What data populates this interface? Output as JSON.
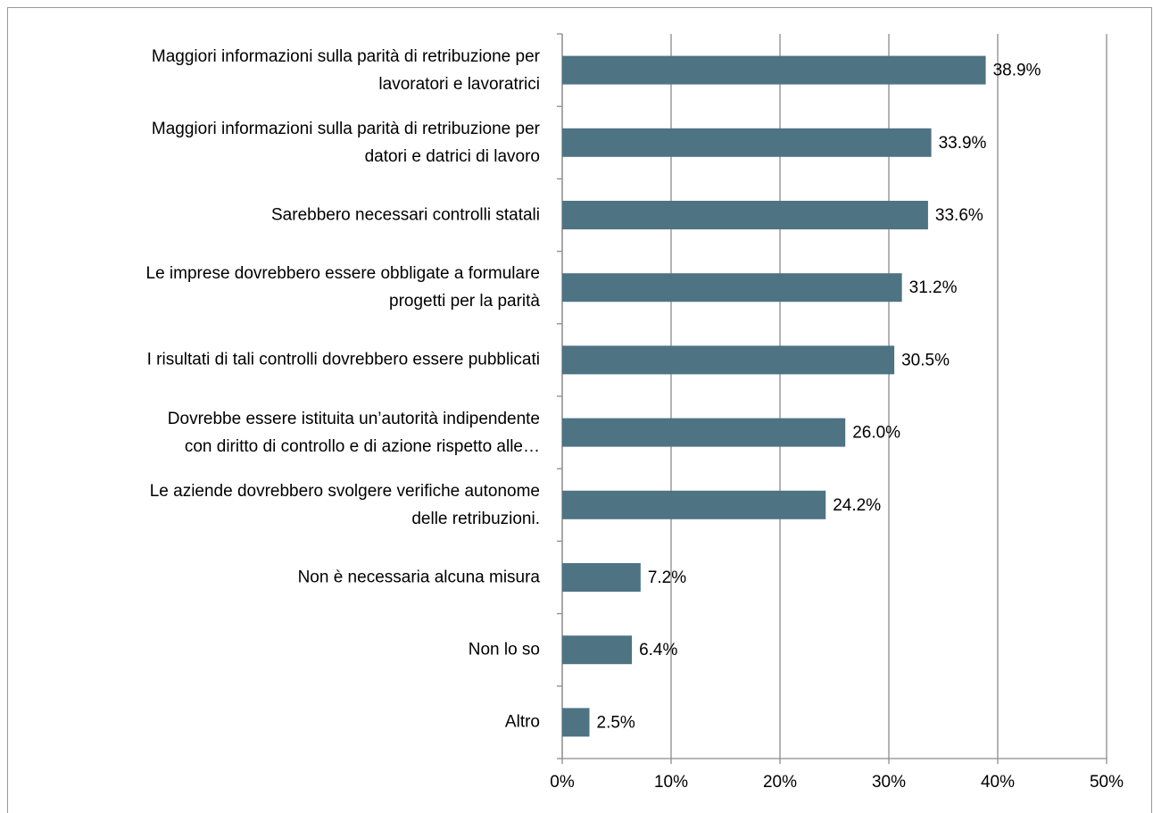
{
  "chart_data": {
    "type": "barh",
    "categories": [
      "Maggiori informazioni sulla parità di retribuzione per\nlavoratori e lavoratrici",
      "Maggiori informazioni sulla parità di retribuzione per\ndatori e datrici di lavoro",
      "Sarebbero necessari controlli statali",
      "Le imprese dovrebbero essere obbligate a formulare\nprogetti per la parità",
      "I risultati di tali controlli dovrebbero essere pubblicati",
      "Dovrebbe essere istituita un’autorità indipendente\ncon diritto di controllo e di azione rispetto alle…",
      "Le aziende dovrebbero svolgere verifiche autonome\ndelle retribuzioni.",
      "Non è necessaria alcuna misura",
      "Non lo so",
      "Altro"
    ],
    "values": [
      38.9,
      33.9,
      33.6,
      31.2,
      30.5,
      26.0,
      24.2,
      7.2,
      6.4,
      2.5
    ],
    "value_labels": [
      "38.9%",
      "33.9%",
      "33.6%",
      "31.2%",
      "30.5%",
      "26.0%",
      "24.2%",
      "7.2%",
      "6.4%",
      "2.5%"
    ],
    "color": "#4e7383",
    "xlim": [
      0,
      50
    ],
    "xticks": [
      {
        "value": 0,
        "label": "0%"
      },
      {
        "value": 10,
        "label": "10%"
      },
      {
        "value": 20,
        "label": "20%"
      },
      {
        "value": 30,
        "label": "30%"
      },
      {
        "value": 40,
        "label": "40%"
      },
      {
        "value": 50,
        "label": "50%"
      }
    ],
    "grid": true
  }
}
